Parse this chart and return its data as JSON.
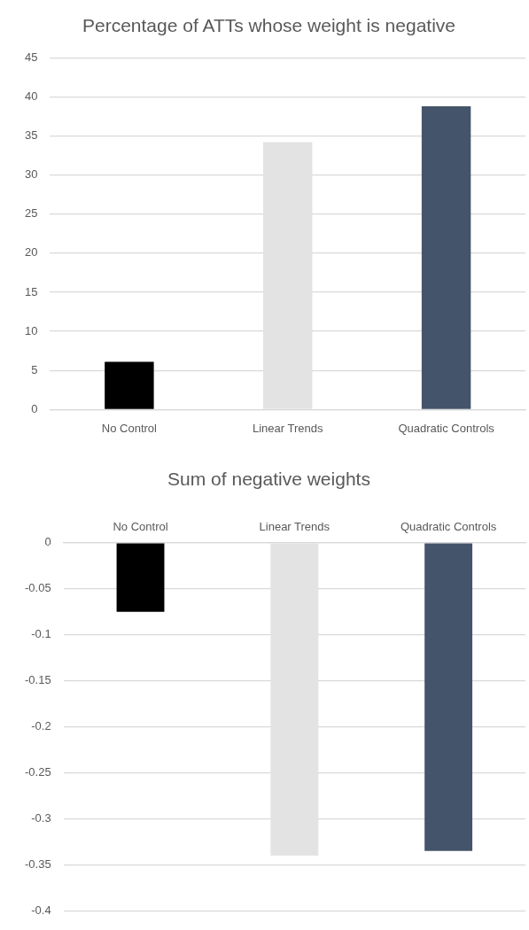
{
  "chart_data": [
    {
      "type": "bar",
      "title": "Percentage of ATTs whose weight is negative",
      "categories": [
        "No Control",
        "Linear Trends",
        "Quadratic Controls"
      ],
      "values": [
        6.1,
        34.2,
        38.8
      ],
      "colors": [
        "#000000",
        "#e3e3e3",
        "#44546a"
      ],
      "ylim": [
        0,
        45
      ],
      "yticks": [
        0,
        5,
        10,
        15,
        20,
        25,
        30,
        35,
        40,
        45
      ],
      "grid": "y"
    },
    {
      "type": "bar",
      "title": "Sum of negative weights",
      "categories": [
        "No Control",
        "Linear Trends",
        "Quadratic Controls"
      ],
      "values": [
        -0.075,
        -0.34,
        -0.335
      ],
      "colors": [
        "#000000",
        "#e3e3e3",
        "#44546a"
      ],
      "ylim": [
        -0.4,
        0
      ],
      "yticks": [
        -0.4,
        -0.35,
        -0.3,
        -0.25,
        -0.2,
        -0.15,
        -0.1,
        -0.05,
        0
      ],
      "grid": "y"
    }
  ]
}
